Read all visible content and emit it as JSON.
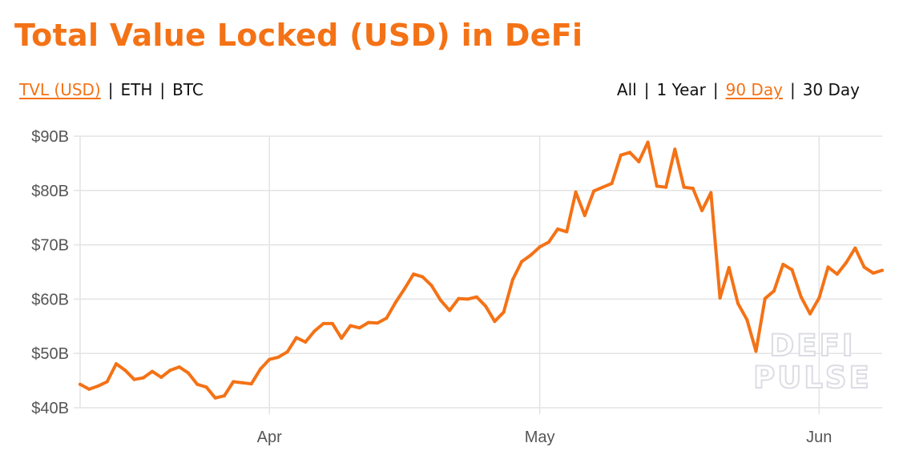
{
  "header": {
    "title": "Total Value Locked (USD) in DeFi"
  },
  "metric_toggle": [
    {
      "label": "TVL (USD)",
      "active": true
    },
    {
      "label": "ETH",
      "active": false
    },
    {
      "label": "BTC",
      "active": false
    }
  ],
  "range_toggle": [
    {
      "label": "All",
      "active": false
    },
    {
      "label": "1 Year",
      "active": false
    },
    {
      "label": "90 Day",
      "active": true
    },
    {
      "label": "30 Day",
      "active": false
    }
  ],
  "separator": "|",
  "watermark": {
    "line1": "DEFI",
    "line2": "PULSE"
  },
  "colors": {
    "accent": "#f47216",
    "grid": "#e3e3e3",
    "axis_text": "#555555",
    "watermark": "#dcdce4"
  },
  "chart_data": {
    "type": "line",
    "title": "Total Value Locked (USD) in DeFi",
    "xlabel": "",
    "ylabel": "",
    "ylim": [
      40,
      90
    ],
    "y_ticks": [
      40,
      50,
      60,
      70,
      80,
      90
    ],
    "y_tick_labels": [
      "$40B",
      "$50B",
      "$60B",
      "$70B",
      "$80B",
      "$90B"
    ],
    "x_range": [
      "2021-03-11",
      "2021-06-08"
    ],
    "x_ticks": [
      {
        "date": "2021-04-01",
        "label": "Apr"
      },
      {
        "date": "2021-05-01",
        "label": "May"
      },
      {
        "date": "2021-06-01",
        "label": "Jun"
      }
    ],
    "grid": true,
    "series": [
      {
        "color": "#f47216",
        "points": [
          [
            "2021-03-11",
            44.3
          ],
          [
            "2021-03-12",
            43.4
          ],
          [
            "2021-03-13",
            44.0
          ],
          [
            "2021-03-14",
            44.8
          ],
          [
            "2021-03-15",
            48.1
          ],
          [
            "2021-03-16",
            46.9
          ],
          [
            "2021-03-17",
            45.2
          ],
          [
            "2021-03-18",
            45.5
          ],
          [
            "2021-03-19",
            46.7
          ],
          [
            "2021-03-20",
            45.6
          ],
          [
            "2021-03-21",
            46.9
          ],
          [
            "2021-03-22",
            47.5
          ],
          [
            "2021-03-23",
            46.4
          ],
          [
            "2021-03-24",
            44.3
          ],
          [
            "2021-03-25",
            43.8
          ],
          [
            "2021-03-26",
            41.8
          ],
          [
            "2021-03-27",
            42.2
          ],
          [
            "2021-03-28",
            44.8
          ],
          [
            "2021-03-29",
            44.6
          ],
          [
            "2021-03-30",
            44.4
          ],
          [
            "2021-03-31",
            47.1
          ],
          [
            "2021-04-01",
            48.9
          ],
          [
            "2021-04-02",
            49.3
          ],
          [
            "2021-04-03",
            50.3
          ],
          [
            "2021-04-04",
            52.9
          ],
          [
            "2021-04-05",
            52.1
          ],
          [
            "2021-04-06",
            54.1
          ],
          [
            "2021-04-07",
            55.5
          ],
          [
            "2021-04-08",
            55.5
          ],
          [
            "2021-04-09",
            52.8
          ],
          [
            "2021-04-10",
            55.1
          ],
          [
            "2021-04-11",
            54.7
          ],
          [
            "2021-04-12",
            55.7
          ],
          [
            "2021-04-13",
            55.6
          ],
          [
            "2021-04-14",
            56.5
          ],
          [
            "2021-04-15",
            59.4
          ],
          [
            "2021-04-16",
            61.9
          ],
          [
            "2021-04-17",
            64.6
          ],
          [
            "2021-04-18",
            64.1
          ],
          [
            "2021-04-19",
            62.5
          ],
          [
            "2021-04-20",
            59.8
          ],
          [
            "2021-04-21",
            57.9
          ],
          [
            "2021-04-22",
            60.1
          ],
          [
            "2021-04-23",
            60.0
          ],
          [
            "2021-04-24",
            60.4
          ],
          [
            "2021-04-25",
            58.7
          ],
          [
            "2021-04-26",
            55.9
          ],
          [
            "2021-04-27",
            57.6
          ],
          [
            "2021-04-28",
            63.6
          ],
          [
            "2021-04-29",
            66.9
          ],
          [
            "2021-04-30",
            68.1
          ],
          [
            "2021-05-01",
            69.6
          ],
          [
            "2021-05-02",
            70.5
          ],
          [
            "2021-05-03",
            72.9
          ],
          [
            "2021-05-04",
            72.4
          ],
          [
            "2021-05-05",
            79.7
          ],
          [
            "2021-05-06",
            75.4
          ],
          [
            "2021-05-07",
            79.9
          ],
          [
            "2021-05-08",
            80.6
          ],
          [
            "2021-05-09",
            81.3
          ],
          [
            "2021-05-10",
            86.5
          ],
          [
            "2021-05-11",
            87.0
          ],
          [
            "2021-05-12",
            85.3
          ],
          [
            "2021-05-13",
            88.9
          ],
          [
            "2021-05-14",
            80.8
          ],
          [
            "2021-05-15",
            80.6
          ],
          [
            "2021-05-16",
            87.6
          ],
          [
            "2021-05-17",
            80.6
          ],
          [
            "2021-05-18",
            80.4
          ],
          [
            "2021-05-19",
            76.3
          ],
          [
            "2021-05-20",
            79.6
          ],
          [
            "2021-05-21",
            60.2
          ],
          [
            "2021-05-22",
            65.8
          ],
          [
            "2021-05-23",
            59.2
          ],
          [
            "2021-05-24",
            56.2
          ],
          [
            "2021-05-25",
            50.4
          ],
          [
            "2021-05-26",
            60.1
          ],
          [
            "2021-05-27",
            61.5
          ],
          [
            "2021-05-28",
            66.4
          ],
          [
            "2021-05-29",
            65.4
          ],
          [
            "2021-05-30",
            60.4
          ],
          [
            "2021-05-31",
            57.3
          ],
          [
            "2021-06-01",
            60.2
          ],
          [
            "2021-06-02",
            65.9
          ],
          [
            "2021-06-03",
            64.6
          ],
          [
            "2021-06-04",
            66.7
          ],
          [
            "2021-06-05",
            69.4
          ],
          [
            "2021-06-06",
            65.9
          ],
          [
            "2021-06-07",
            64.8
          ],
          [
            "2021-06-08",
            65.3
          ]
        ]
      }
    ]
  }
}
